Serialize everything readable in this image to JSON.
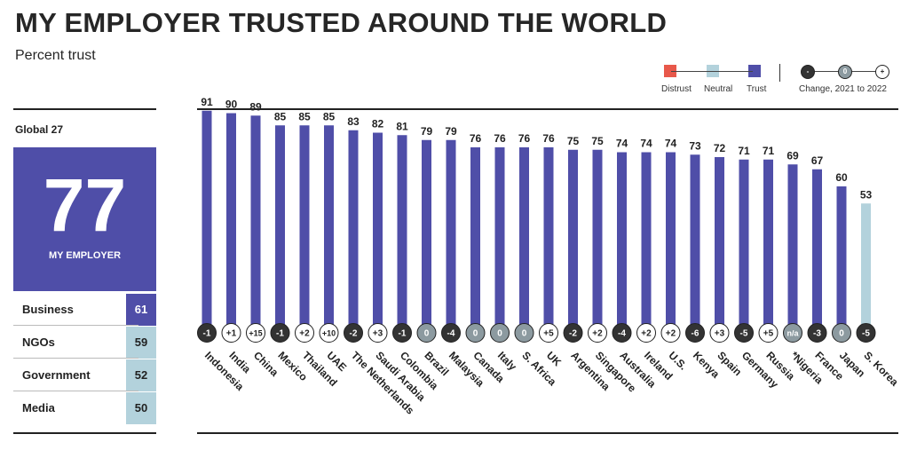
{
  "header": {
    "title": "MY EMPLOYER TRUSTED AROUND THE WORLD",
    "subtitle": "Percent trust"
  },
  "legend": {
    "distrust_label": "Distrust",
    "neutral_label": "Neutral",
    "trust_label": "Trust",
    "change_label": "Change, 2021 to 2022",
    "change_neg": "-",
    "change_zero": "0",
    "change_pos": "+"
  },
  "colors": {
    "distrust": "#e8584a",
    "neutral": "#b3d2dc",
    "trust": "#4f4ea8",
    "change_negative": "#333333",
    "change_zero": "#8c9aa0",
    "change_positive": "#ffffff"
  },
  "global": {
    "label": "Global 27",
    "value": "77",
    "value_label": "MY EMPLOYER",
    "stats": [
      {
        "label": "Business",
        "value": "61",
        "level": "trust"
      },
      {
        "label": "NGOs",
        "value": "59",
        "level": "neutral"
      },
      {
        "label": "Government",
        "value": "52",
        "level": "neutral"
      },
      {
        "label": "Media",
        "value": "50",
        "level": "neutral"
      }
    ]
  },
  "chart_data": {
    "type": "bar",
    "title": "MY EMPLOYER TRUSTED AROUND THE WORLD",
    "subtitle": "Percent trust",
    "ylim": [
      0,
      100
    ],
    "grid": false,
    "categories": [
      "Indonesia",
      "India",
      "China",
      "Mexico",
      "Thailand",
      "UAE",
      "The Netherlands",
      "Saudi Arabia",
      "Colombia",
      "Brazil",
      "Malaysia",
      "Canada",
      "Italy",
      "S. Africa",
      "UK",
      "Argentina",
      "Singapore",
      "Australia",
      "Ireland",
      "U.S.",
      "Kenya",
      "Spain",
      "Germany",
      "Russia",
      "*Nigeria",
      "France",
      "Japan",
      "S. Korea"
    ],
    "values": [
      91,
      90,
      89,
      85,
      85,
      85,
      83,
      82,
      81,
      79,
      79,
      76,
      76,
      76,
      76,
      75,
      75,
      74,
      74,
      74,
      73,
      72,
      71,
      71,
      69,
      67,
      60,
      53
    ],
    "levels": [
      "trust",
      "trust",
      "trust",
      "trust",
      "trust",
      "trust",
      "trust",
      "trust",
      "trust",
      "trust",
      "trust",
      "trust",
      "trust",
      "trust",
      "trust",
      "trust",
      "trust",
      "trust",
      "trust",
      "trust",
      "trust",
      "trust",
      "trust",
      "trust",
      "trust",
      "trust",
      "trust",
      "neutral"
    ],
    "changes": [
      "-1",
      "+1",
      "+15",
      "-1",
      "+2",
      "+10",
      "-2",
      "+3",
      "-1",
      "0",
      "-4",
      "0",
      "0",
      "0",
      "+5",
      "-2",
      "+2",
      "-4",
      "+2",
      "+2",
      "-6",
      "+3",
      "-5",
      "+5",
      "n/a",
      "-3",
      "0",
      "-5"
    ]
  }
}
